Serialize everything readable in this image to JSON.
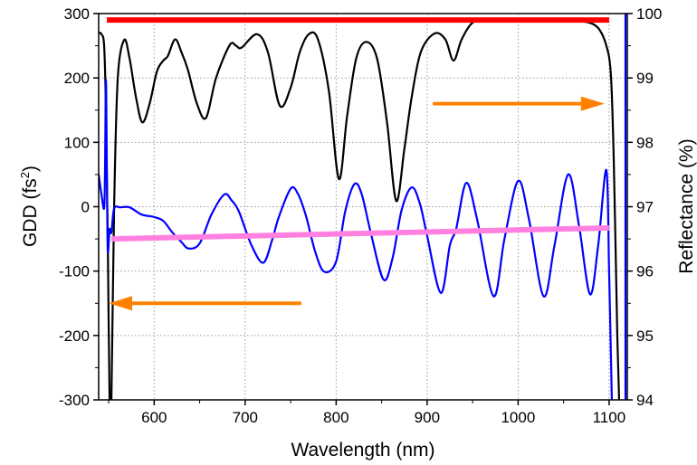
{
  "chart_data": {
    "type": "line",
    "xlabel": "Wavelength (nm)",
    "ylabel_left": "GDD (fs",
    "ylabel_left_sup": "2",
    "ylabel_left_close": ")",
    "ylabel_right": "Reflectance (%)",
    "xlim": [
      539,
      1120
    ],
    "ylim_left": [
      -300,
      300
    ],
    "ylim_right": [
      94,
      100
    ],
    "xticks": [
      "600",
      "700",
      "800",
      "900",
      "1000",
      "1100"
    ],
    "yticks_left": [
      "300",
      "200",
      "100",
      "0",
      "-100",
      "-200",
      "-300"
    ],
    "yticks_right": [
      "100",
      "99",
      "98",
      "97",
      "96",
      "95",
      "94"
    ],
    "grid": true,
    "series": [
      {
        "axis": "right",
        "color": "#000000",
        "points": [
          [
            539,
            99.7
          ],
          [
            542,
            99.68
          ],
          [
            545,
            99.5
          ],
          [
            547,
            98.5
          ],
          [
            549,
            96.5
          ],
          [
            551,
            94.0
          ],
          [
            553,
            94.0
          ],
          [
            556,
            97.0
          ],
          [
            560,
            99.0
          ],
          [
            567,
            99.59
          ],
          [
            573,
            99.3
          ],
          [
            580,
            98.7
          ],
          [
            587,
            98.31
          ],
          [
            595,
            98.6
          ],
          [
            603,
            99.1
          ],
          [
            610,
            99.27
          ],
          [
            615,
            99.34
          ],
          [
            623,
            99.6
          ],
          [
            630,
            99.4
          ],
          [
            637,
            99.13
          ],
          [
            647,
            98.6
          ],
          [
            657,
            98.38
          ],
          [
            668,
            99.0
          ],
          [
            683,
            99.51
          ],
          [
            690,
            99.5
          ],
          [
            696,
            99.47
          ],
          [
            713,
            99.68
          ],
          [
            725,
            99.4
          ],
          [
            738,
            98.57
          ],
          [
            750,
            98.85
          ],
          [
            760,
            99.4
          ],
          [
            770,
            99.68
          ],
          [
            780,
            99.6
          ],
          [
            792,
            98.8
          ],
          [
            803,
            97.43
          ],
          [
            812,
            98.4
          ],
          [
            822,
            99.3
          ],
          [
            833,
            99.56
          ],
          [
            845,
            99.3
          ],
          [
            856,
            98.3
          ],
          [
            866,
            97.09
          ],
          [
            875,
            97.9
          ],
          [
            883,
            98.7
          ],
          [
            893,
            99.4
          ],
          [
            908,
            99.69
          ],
          [
            920,
            99.6
          ],
          [
            929,
            99.27
          ],
          [
            938,
            99.6
          ],
          [
            950,
            99.86
          ],
          [
            965,
            99.9
          ],
          [
            1000,
            99.91
          ],
          [
            1040,
            99.9
          ],
          [
            1070,
            99.88
          ],
          [
            1087,
            99.79
          ],
          [
            1097,
            99.5
          ],
          [
            1102,
            99.04
          ],
          [
            1105,
            97.8
          ],
          [
            1107,
            96.46
          ],
          [
            1109,
            95.0
          ],
          [
            1111,
            94.0
          ]
        ]
      },
      {
        "axis": "left",
        "color": "#0000ff",
        "points": [
          [
            539,
            50
          ],
          [
            542,
            20
          ],
          [
            545,
            -2
          ],
          [
            546,
            60
          ],
          [
            547,
            197
          ],
          [
            548,
            60
          ],
          [
            549,
            -68
          ],
          [
            551,
            -35
          ],
          [
            553,
            -40
          ],
          [
            556,
            -3
          ],
          [
            563,
            -1
          ],
          [
            573,
            -1
          ],
          [
            586,
            -12
          ],
          [
            600,
            -16
          ],
          [
            610,
            -22
          ],
          [
            620,
            -40
          ],
          [
            630,
            -55
          ],
          [
            638,
            -65
          ],
          [
            650,
            -57
          ],
          [
            663,
            -12
          ],
          [
            677,
            19
          ],
          [
            685,
            10
          ],
          [
            693,
            -7
          ],
          [
            707,
            -60
          ],
          [
            720,
            -87
          ],
          [
            730,
            -50
          ],
          [
            737,
            -16
          ],
          [
            750,
            28
          ],
          [
            758,
            20
          ],
          [
            767,
            -15
          ],
          [
            777,
            -70
          ],
          [
            787,
            -101
          ],
          [
            800,
            -85
          ],
          [
            810,
            -7
          ],
          [
            820,
            35
          ],
          [
            828,
            20
          ],
          [
            838,
            -40
          ],
          [
            852,
            -113
          ],
          [
            862,
            -80
          ],
          [
            872,
            -5
          ],
          [
            883,
            30
          ],
          [
            892,
            5
          ],
          [
            900,
            -45
          ],
          [
            915,
            -134
          ],
          [
            925,
            -60
          ],
          [
            932,
            -34
          ],
          [
            943,
            37
          ],
          [
            955,
            -20
          ],
          [
            973,
            -139
          ],
          [
            985,
            -50
          ],
          [
            1000,
            40
          ],
          [
            1012,
            -20
          ],
          [
            1028,
            -139
          ],
          [
            1040,
            -60
          ],
          [
            1055,
            50
          ],
          [
            1067,
            -30
          ],
          [
            1079,
            -136
          ],
          [
            1088,
            -60
          ],
          [
            1097,
            57
          ],
          [
            1100,
            -100
          ],
          [
            1103,
            -300
          ]
        ]
      },
      {
        "axis": "left",
        "color": "#0000ff",
        "points": [
          [
            1118,
            -300
          ],
          [
            1118,
            300
          ]
        ]
      },
      {
        "axis": "left",
        "color": "#ff80e0",
        "width": 6,
        "points": [
          [
            553,
            -50
          ],
          [
            1100,
            -33
          ]
        ]
      },
      {
        "axis": "right",
        "color": "#ff0000",
        "width": 6,
        "points": [
          [
            548,
            99.9
          ],
          [
            1100,
            99.9
          ]
        ]
      }
    ],
    "annotations": [
      {
        "type": "arrow",
        "color": "#ff8000",
        "axis": "left",
        "from": [
          760,
          -150
        ],
        "to": [
          550,
          -150
        ]
      },
      {
        "type": "arrow",
        "color": "#ff8000",
        "axis": "right",
        "from": [
          908,
          98.6
        ],
        "to": [
          1095,
          98.6
        ]
      }
    ]
  }
}
